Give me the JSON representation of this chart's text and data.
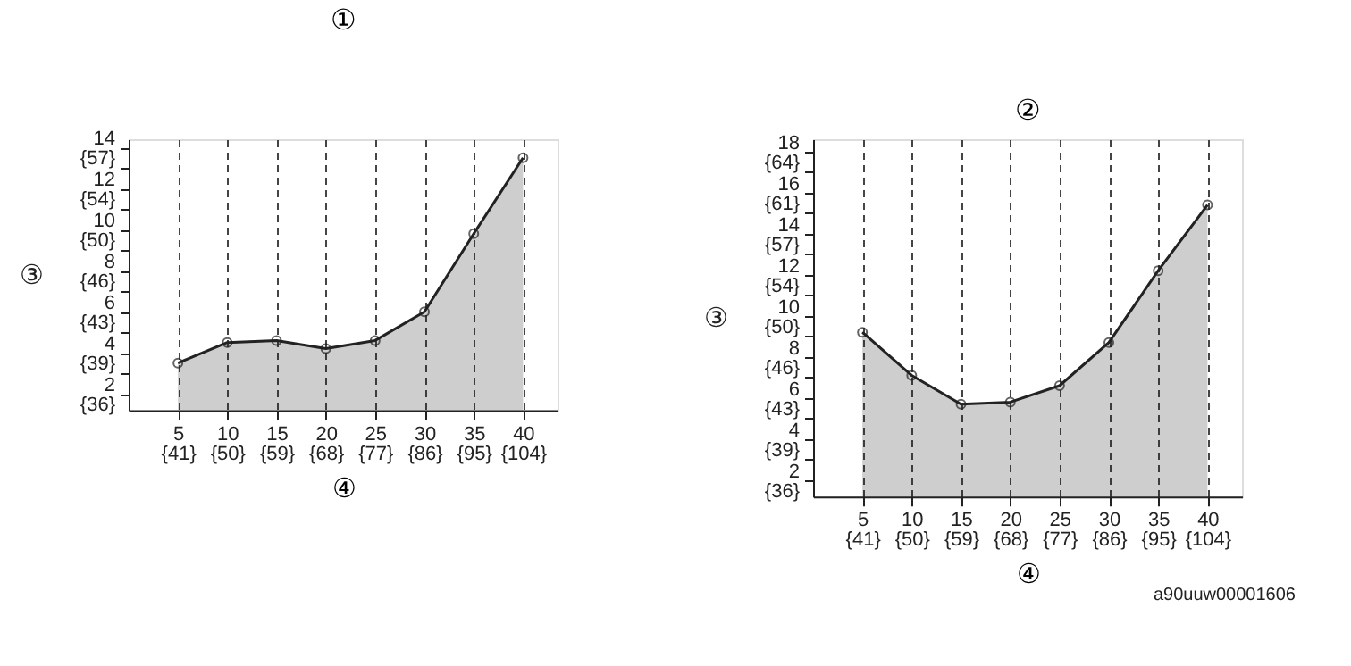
{
  "chart_data": [
    {
      "type": "area",
      "title": "①",
      "xlabel": "④",
      "y2label": "③",
      "x": [
        5,
        10,
        15,
        20,
        25,
        30,
        35,
        40
      ],
      "series": [
        {
          "color": "#222222",
          "values": [
            3.5,
            4.5,
            4.6,
            4.2,
            4.6,
            6.0,
            9.8,
            13.5
          ]
        }
      ],
      "xlim": [
        0,
        43.5
      ],
      "xticks": [
        5,
        10,
        15,
        20,
        25,
        30,
        35,
        40
      ],
      "x2lim": [
        32,
        110.3
      ],
      "x2ticks": [
        {
          "value": 41,
          "label": "{41}"
        },
        {
          "value": 50,
          "label": "{50}"
        },
        {
          "value": 59,
          "label": "{59}"
        },
        {
          "value": 68,
          "label": "{68}"
        },
        {
          "value": 77,
          "label": "{77}"
        },
        {
          "value": 86,
          "label": "{86}"
        },
        {
          "value": 95,
          "label": "{95}"
        },
        {
          "value": 104,
          "label": "{104}"
        }
      ],
      "ylim": [
        1.2,
        14.4
      ],
      "yticks": [
        2,
        {
          "value": 3,
          "label": null
        },
        4,
        {
          "value": 5,
          "label": null
        },
        6,
        {
          "value": 7,
          "label": null
        },
        8,
        {
          "value": 9,
          "label": null
        },
        10,
        {
          "value": 11,
          "label": null
        },
        12,
        {
          "value": 13,
          "label": null
        },
        14
      ],
      "y2lim": [
        34.16,
        57.92
      ],
      "y2ticks": [
        {
          "value": 35.6,
          "label": "{36}"
        },
        {
          "value": 39.2,
          "label": "{39}"
        },
        {
          "value": 42.8,
          "label": "{43}"
        },
        {
          "value": 46.4,
          "label": "{46}"
        },
        {
          "value": 50,
          "label": "{50}"
        },
        {
          "value": 53.6,
          "label": "{54}"
        },
        {
          "value": 57.2,
          "label": "{57}"
        }
      ],
      "grid": "x",
      "marker": "circle",
      "line_style": "solid"
    },
    {
      "type": "area",
      "title": "②",
      "xlabel": "④",
      "y2label": "③",
      "x": [
        5,
        10,
        15,
        20,
        25,
        30,
        35,
        40
      ],
      "series": [
        {
          "color": "#222222",
          "values": [
            9.2,
            7.1,
            5.7,
            5.8,
            6.6,
            8.7,
            12.2,
            15.4
          ]
        }
      ],
      "xlim": [
        0,
        43.5
      ],
      "xticks": [
        5,
        10,
        15,
        20,
        25,
        30,
        35,
        40
      ],
      "x2lim": [
        32,
        110.3
      ],
      "x2ticks": [
        {
          "value": 41,
          "label": "{41}"
        },
        {
          "value": 50,
          "label": "{50}"
        },
        {
          "value": 59,
          "label": "{59}"
        },
        {
          "value": 68,
          "label": "{68}"
        },
        {
          "value": 77,
          "label": "{77}"
        },
        {
          "value": 86,
          "label": "{86}"
        },
        {
          "value": 95,
          "label": "{95}"
        },
        {
          "value": 104,
          "label": "{104}"
        }
      ],
      "ylim": [
        1.2,
        18.6
      ],
      "yticks": [
        2,
        {
          "value": 3,
          "label": null
        },
        4,
        {
          "value": 5,
          "label": null
        },
        6,
        {
          "value": 7,
          "label": null
        },
        8,
        {
          "value": 9,
          "label": null
        },
        10,
        {
          "value": 11,
          "label": null
        },
        12,
        {
          "value": 13,
          "label": null
        },
        14,
        {
          "value": 15,
          "label": null
        },
        16,
        {
          "value": 17,
          "label": null
        },
        18
      ],
      "y2lim": [
        34.16,
        65.48
      ],
      "y2ticks": [
        {
          "value": 35.6,
          "label": "{36}"
        },
        {
          "value": 39.2,
          "label": "{39}"
        },
        {
          "value": 42.8,
          "label": "{43}"
        },
        {
          "value": 46.4,
          "label": "{46}"
        },
        {
          "value": 50,
          "label": "{50}"
        },
        {
          "value": 53.6,
          "label": "{54}"
        },
        {
          "value": 57.2,
          "label": "{57}"
        },
        {
          "value": 60.8,
          "label": "{61}"
        },
        {
          "value": 64.4,
          "label": "{64}"
        }
      ],
      "grid": "x",
      "marker": "circle",
      "line_style": "solid",
      "annotations": [
        "a90uuw00001606"
      ]
    }
  ]
}
